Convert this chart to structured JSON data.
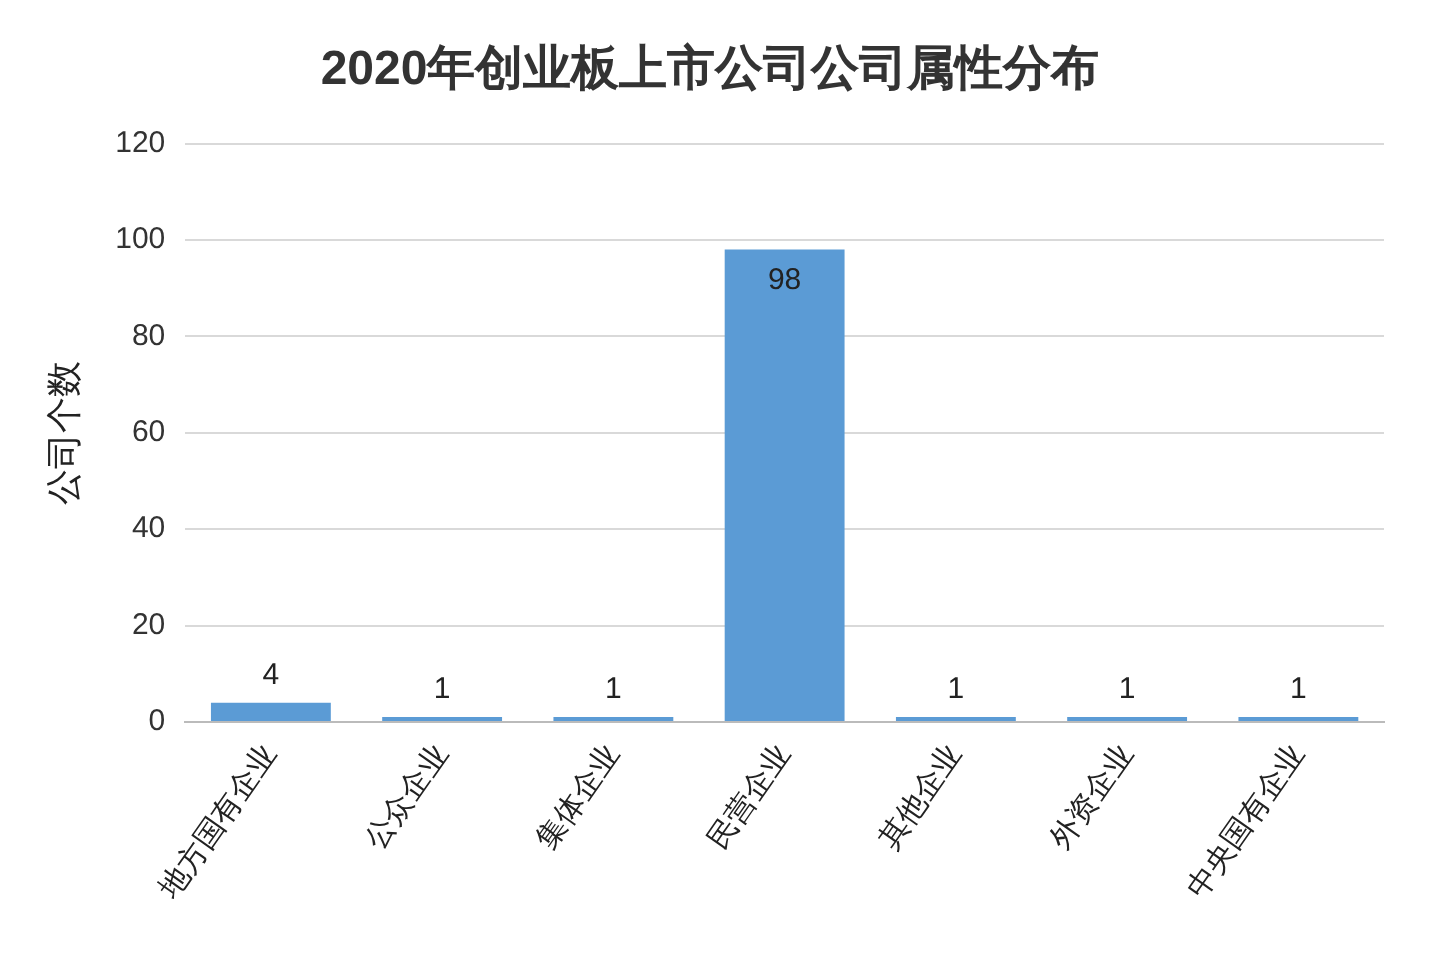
{
  "chart_data": {
    "type": "bar",
    "title": "2020年创业板上市公司公司属性分布",
    "ylabel": "公司个数",
    "categories": [
      "地方国有企业",
      "公众企业",
      "集体企业",
      "民营企业",
      "其他企业",
      "外资企业",
      "中央国有企业"
    ],
    "values": [
      4,
      1,
      1,
      98,
      1,
      1,
      1
    ],
    "color": "#5b9bd5",
    "ylim": [
      0,
      120
    ],
    "yticks": [
      0,
      20,
      40,
      60,
      80,
      100,
      120
    ],
    "grid": "y",
    "data_labels": true,
    "legend": false
  }
}
